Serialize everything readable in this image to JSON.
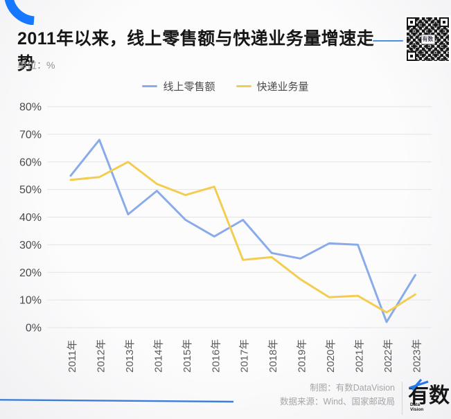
{
  "header": {
    "title": "2011年以来，线上零售额与快递业务量增速走势",
    "unit_label": "单位：%",
    "qr_center_label": "有数"
  },
  "chart_data": {
    "type": "line",
    "title": "2011年以来，线上零售额与快递业务量增速走势",
    "unit": "%",
    "categories": [
      "2011年",
      "2012年",
      "2013年",
      "2014年",
      "2015年",
      "2016年",
      "2017年",
      "2018年",
      "2019年",
      "2020年",
      "2021年",
      "2022年",
      "2023年"
    ],
    "series": [
      {
        "name": "线上零售额",
        "color": "#8aabe9",
        "values": [
          55,
          68,
          41,
          49.5,
          39,
          33,
          39,
          27,
          25,
          30.5,
          30,
          2,
          19
        ]
      },
      {
        "name": "快递业务量",
        "color": "#f3cd50",
        "values": [
          53.5,
          54.5,
          60,
          52,
          48,
          51,
          24.5,
          25.5,
          17.5,
          11,
          11.5,
          5.5,
          12
        ]
      }
    ],
    "ylim": [
      0,
      80
    ],
    "ytick_step": 10,
    "ytick_suffix": "%",
    "xlabel": "",
    "ylabel": "",
    "grid": "horizontal",
    "legend_position": "top-center"
  },
  "footer": {
    "credit": "制图：有数DataVision",
    "source": "数据来源：Wind、国家邮政局",
    "logo_text": "有数",
    "logo_sub_line1": "Data",
    "logo_sub_line2": "Vision"
  },
  "colors": {
    "brand_blue": "#1677ff",
    "accent_line": "#4a90e2",
    "series_blue": "#8aabe9",
    "series_yellow": "#f3cd50",
    "gridline": "#e4e4e6",
    "axis_text": "#4a4a4a",
    "swoosh": "#3b7dd8"
  }
}
